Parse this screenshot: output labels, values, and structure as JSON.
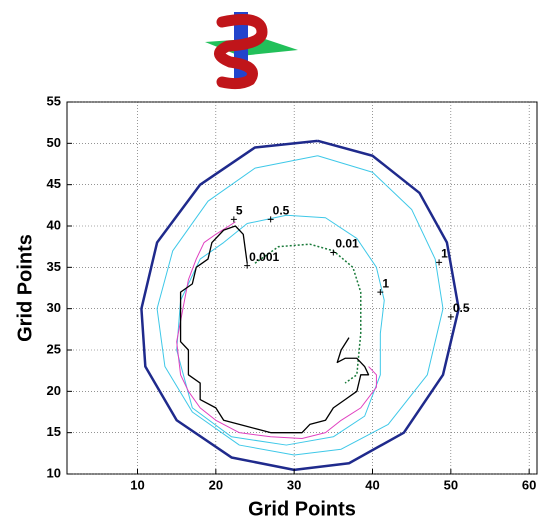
{
  "chart_data": {
    "type": "contour",
    "xlabel": "Grid Points",
    "ylabel": "Grid Points",
    "xlim": [
      1,
      61
    ],
    "ylim": [
      10,
      55
    ],
    "xticks": [
      10,
      20,
      30,
      40,
      50,
      60
    ],
    "yticks": [
      10,
      15,
      20,
      25,
      30,
      35,
      40,
      45,
      50,
      55
    ],
    "grid": true,
    "contours": [
      {
        "color": "#1f2a8c",
        "width": 2.5,
        "dashed": false,
        "x": [
          33,
          40,
          46,
          49.5,
          51,
          49,
          44,
          37,
          30,
          22,
          15,
          11,
          10.5,
          12.5,
          18,
          25,
          33
        ],
        "y": [
          50.3,
          48.5,
          44,
          38,
          30,
          22,
          15,
          11.3,
          10.5,
          12,
          16.5,
          23,
          30,
          38,
          45,
          49.5,
          50.3
        ]
      },
      {
        "color": "#3ec8e8",
        "width": 1,
        "dashed": false,
        "x": [
          33,
          40,
          45,
          48,
          49,
          47,
          42,
          36,
          30,
          23,
          17,
          13.5,
          12.5,
          14.5,
          19,
          25,
          33
        ],
        "y": [
          48.5,
          46.5,
          42,
          36,
          30,
          22,
          16,
          13,
          12.3,
          13.5,
          17.5,
          23,
          30,
          37,
          43,
          47,
          48.5
        ]
      },
      {
        "color": "#3ec8e8",
        "width": 1,
        "dashed": false,
        "x": [
          24,
          29,
          34,
          38,
          40.5,
          41.5,
          41,
          41,
          39,
          35,
          29,
          22,
          17,
          15,
          15.5,
          18,
          21,
          24
        ],
        "y": [
          40.3,
          41.3,
          41,
          38.5,
          35,
          31,
          27,
          22,
          17,
          14.5,
          13.5,
          14.5,
          18,
          25,
          31,
          36,
          38,
          40.3
        ]
      },
      {
        "color": "#1a7a3a",
        "width": 1.5,
        "dashed": true,
        "x": [
          25,
          28,
          32,
          35,
          37.5,
          38.5,
          38.5,
          38,
          36.5
        ],
        "y": [
          35.5,
          37.5,
          37.8,
          37,
          35,
          32,
          27,
          22,
          21
        ]
      },
      {
        "color": "#e040c0",
        "width": 1,
        "dashed": false,
        "x": [
          22.5,
          20,
          18.5,
          17.5,
          16.5,
          15.8,
          15,
          15.5,
          16.5,
          18,
          20,
          23,
          27,
          31,
          34,
          36,
          38.5,
          40.5,
          40.5,
          39.5
        ],
        "y": [
          40.5,
          39,
          38,
          36,
          33.5,
          30,
          26,
          22,
          20,
          18,
          16.5,
          15,
          14.5,
          14.3,
          15,
          16.5,
          18,
          20.5,
          22,
          23
        ]
      },
      {
        "color": "#000000",
        "width": 1.3,
        "dashed": false,
        "x": [
          24,
          23.5,
          22.5,
          21,
          19.5,
          19,
          17.5,
          17,
          15.5,
          15.5,
          16.5,
          16.5,
          18,
          18,
          20,
          21,
          23,
          25,
          27,
          31,
          32,
          34,
          35,
          36.5,
          38,
          38.5,
          39.5,
          39,
          38,
          36.5,
          35.5,
          36,
          37
        ],
        "y": [
          35.5,
          39,
          40,
          39.5,
          38,
          36,
          35,
          33,
          32,
          26,
          25,
          22,
          21,
          19,
          18,
          16.5,
          16,
          15.5,
          15,
          15,
          16,
          16.5,
          18,
          19,
          20,
          22,
          22,
          23,
          24,
          24,
          23.5,
          25,
          26.5
        ]
      }
    ],
    "labels": [
      {
        "level": 5,
        "x": 22.3,
        "y": 40.8
      },
      {
        "level": 0.5,
        "x": 27,
        "y": 40.8
      },
      {
        "level": 0.001,
        "x": 24,
        "y": 35.2
      },
      {
        "level": 0.01,
        "x": 35,
        "y": 36.8
      },
      {
        "level": 1,
        "x": 41,
        "y": 32
      },
      {
        "level": 1,
        "x": 48.5,
        "y": 35.6
      },
      {
        "level": 0.5,
        "x": 50,
        "y": 29
      }
    ]
  }
}
